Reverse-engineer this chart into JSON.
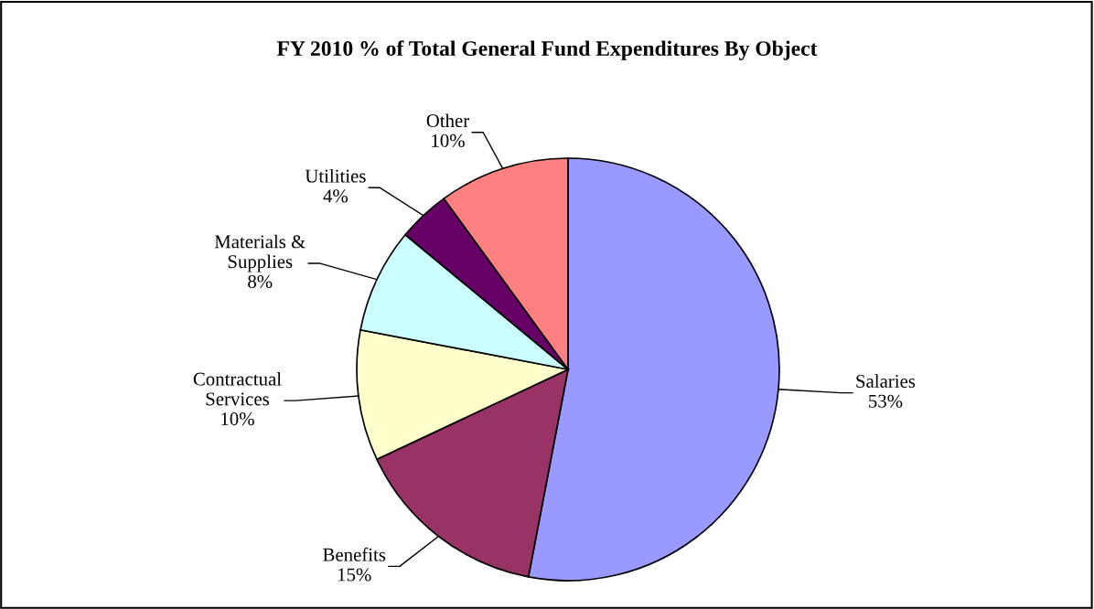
{
  "chart_data": {
    "type": "pie",
    "title": "FY 2010 % of Total General Fund Expenditures By Object",
    "categories": [
      "Salaries",
      "Benefits",
      "Contractual Services",
      "Materials & Supplies",
      "Utilities",
      "Other"
    ],
    "values": [
      53,
      15,
      10,
      8,
      4,
      10
    ],
    "value_labels": [
      "53%",
      "15%",
      "10%",
      "8%",
      "4%",
      "10%"
    ],
    "colors": [
      "#9999ff",
      "#993366",
      "#ffffcc",
      "#ccffff",
      "#660066",
      "#ff8080"
    ],
    "legend": false
  }
}
